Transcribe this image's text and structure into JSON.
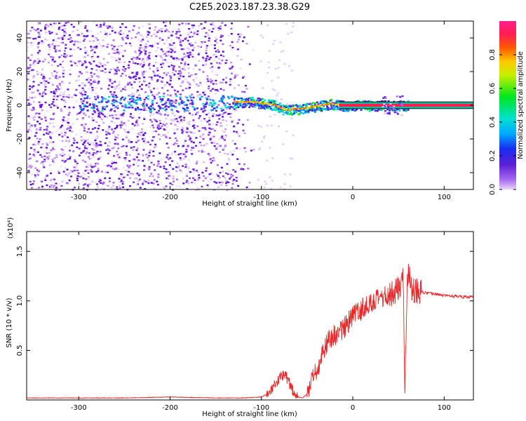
{
  "title": "C2E5.2023.187.23.38.G29",
  "chart_data": [
    {
      "type": "heatmap",
      "xlabel": "Height of straight line (km)",
      "ylabel": "Frequency (Hz)",
      "xlim": [
        -357,
        132
      ],
      "ylim": [
        -50,
        50
      ],
      "xticks": [
        -300,
        -200,
        -100,
        0,
        100
      ],
      "yticks": [
        -40,
        -20,
        0,
        20,
        40
      ],
      "colorbar": {
        "label": "Normalized spectral amplitude",
        "range": [
          0.0,
          1.0
        ],
        "ticks": [
          0.0,
          0.2,
          0.4,
          0.6,
          0.8
        ]
      },
      "ridge_frequency": {
        "x": [
          -130,
          -110,
          -95,
          -85,
          -78,
          -72,
          -65,
          -55,
          -45,
          -35,
          -25,
          -15,
          0,
          30,
          60,
          100,
          132
        ],
        "y": [
          2,
          2,
          1,
          0,
          -2,
          -3,
          -2,
          -2,
          -1,
          0,
          1,
          0,
          0,
          0,
          0,
          0,
          0
        ]
      }
    },
    {
      "type": "line",
      "xlabel": "Height of straight line (km)",
      "ylabel": "SNR (10 * v/v)",
      "y_multiplier": "(x10⁴)",
      "xlim": [
        -357,
        132
      ],
      "ylim": [
        0.0,
        1.7
      ],
      "xticks": [
        -300,
        -200,
        -100,
        0,
        100
      ],
      "yticks": [
        0.5,
        1.0,
        1.5
      ],
      "series": [
        {
          "color": "#e8282b",
          "x": [
            -357,
            -300,
            -250,
            -200,
            -150,
            -120,
            -100,
            -90,
            -85,
            -80,
            -75,
            -70,
            -65,
            -60,
            -55,
            -50,
            -45,
            -40,
            -35,
            -30,
            -25,
            -20,
            -15,
            -10,
            -5,
            0,
            5,
            10,
            15,
            20,
            30,
            40,
            45,
            50,
            55,
            57,
            60,
            65,
            70,
            80,
            90,
            100,
            110,
            120,
            132
          ],
          "y": [
            0.02,
            0.02,
            0.02,
            0.03,
            0.02,
            0.02,
            0.03,
            0.08,
            0.14,
            0.22,
            0.28,
            0.18,
            0.08,
            0.03,
            0.02,
            0.06,
            0.18,
            0.28,
            0.42,
            0.55,
            0.62,
            0.66,
            0.68,
            0.72,
            0.78,
            0.85,
            0.88,
            0.92,
            0.96,
            0.98,
            1.02,
            1.06,
            1.1,
            1.12,
            1.25,
            0.14,
            1.3,
            1.12,
            1.1,
            1.08,
            1.07,
            1.05,
            1.05,
            1.04,
            1.04
          ]
        }
      ]
    }
  ]
}
